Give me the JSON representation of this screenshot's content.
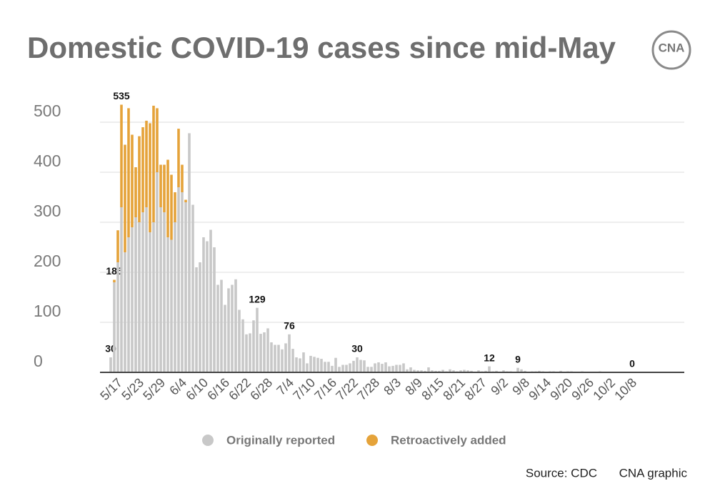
{
  "chart_data": {
    "type": "bar",
    "stacked": true,
    "title": "Domestic COVID-19 cases since mid-May",
    "logo": "CNA",
    "source": "Source: CDC",
    "credit": "CNA graphic",
    "ylim": [
      0,
      550
    ],
    "yticks": [
      0,
      100,
      200,
      300,
      400,
      500
    ],
    "grid": true,
    "categories": [
      null,
      null,
      "5/17",
      null,
      null,
      null,
      null,
      null,
      "5/23",
      null,
      null,
      null,
      null,
      null,
      "5/29",
      null,
      null,
      null,
      null,
      null,
      "6/4",
      null,
      null,
      null,
      null,
      null,
      "6/10",
      null,
      null,
      null,
      null,
      null,
      "6/16",
      null,
      null,
      null,
      null,
      null,
      "6/22",
      null,
      null,
      null,
      null,
      null,
      "6/28",
      null,
      null,
      null,
      null,
      null,
      "7/4",
      null,
      null,
      null,
      null,
      null,
      "7/10",
      null,
      null,
      null,
      null,
      null,
      "7/16",
      null,
      null,
      null,
      null,
      null,
      "7/22",
      null,
      null,
      null,
      null,
      null,
      "7/28",
      null,
      null,
      null,
      null,
      null,
      "8/3",
      null,
      null,
      null,
      null,
      null,
      "8/9",
      null,
      null,
      null,
      null,
      null,
      "8/15",
      null,
      null,
      null,
      null,
      null,
      "8/21",
      null,
      null,
      null,
      null,
      null,
      "8/27",
      null,
      null,
      null,
      null,
      null,
      "9/2",
      null,
      null,
      null,
      null,
      null,
      "9/8",
      null,
      null,
      null,
      null,
      null,
      "9/14",
      null,
      null,
      null,
      null,
      null,
      "9/20",
      null,
      null,
      null,
      null,
      null,
      "9/26",
      null,
      null,
      null,
      null,
      null,
      "10/2",
      null,
      null,
      null,
      null,
      null,
      "10/8"
    ],
    "series": [
      {
        "name": "Originally reported",
        "color": "#c8c8c8",
        "values": [
          30,
          180,
          220,
          330,
          240,
          270,
          290,
          310,
          300,
          320,
          330,
          280,
          300,
          400,
          330,
          320,
          270,
          265,
          300,
          370,
          360,
          340,
          478,
          335,
          210,
          220,
          270,
          262,
          285,
          250,
          175,
          185,
          135,
          168,
          175,
          186,
          125,
          106,
          76,
          78,
          104,
          129,
          77,
          80,
          88,
          60,
          55,
          55,
          46,
          58,
          76,
          47,
          30,
          28,
          40,
          18,
          33,
          31,
          29,
          27,
          21,
          21,
          13,
          29,
          11,
          15,
          15,
          18,
          23,
          30,
          25,
          24,
          11,
          11,
          18,
          20,
          17,
          20,
          12,
          13,
          15,
          15,
          18,
          6,
          10,
          5,
          4,
          4,
          3,
          10,
          4,
          3,
          3,
          5,
          2,
          6,
          4,
          2,
          4,
          5,
          4,
          3,
          1,
          4,
          2,
          3,
          12,
          2,
          3,
          1,
          4,
          2,
          2,
          1,
          9,
          6,
          3,
          1,
          2,
          2,
          3,
          2,
          1,
          2,
          2,
          1,
          3,
          1,
          2,
          2,
          1,
          1,
          2,
          1,
          0,
          1,
          1,
          2,
          1,
          0,
          1,
          1,
          0,
          1,
          0,
          1,
          0
        ]
      },
      {
        "name": "Retroactively added",
        "color": "#e5a33a",
        "values": [
          0,
          5,
          64,
          205,
          215,
          258,
          185,
          100,
          172,
          170,
          173,
          218,
          233,
          128,
          85,
          95,
          155,
          130,
          60,
          117,
          55,
          5,
          0,
          0,
          0,
          0,
          0,
          0,
          0,
          0,
          0,
          0,
          0,
          0,
          0,
          0,
          0,
          0,
          0,
          0,
          0,
          0,
          0,
          0,
          0,
          0,
          0,
          0,
          0,
          0,
          0,
          0,
          0,
          0,
          0,
          0,
          0,
          0,
          0,
          0,
          0,
          0,
          0,
          0,
          0,
          0,
          0,
          0,
          0,
          0,
          0,
          0,
          0,
          0,
          0,
          0,
          0,
          0,
          0,
          0,
          0,
          0,
          0,
          0,
          0,
          0,
          0,
          0,
          0,
          0,
          0,
          0,
          0,
          0,
          0,
          0,
          0,
          0,
          0,
          0,
          0,
          0,
          0,
          0,
          0,
          0,
          0,
          0,
          0,
          0,
          0,
          0,
          0,
          0,
          0,
          0,
          0,
          0,
          0,
          0,
          0,
          0,
          0,
          0,
          0,
          0,
          0,
          0,
          0,
          0,
          0,
          0,
          0,
          0,
          0,
          0,
          0,
          0,
          0,
          0,
          0,
          0,
          0,
          0,
          0,
          0,
          0
        ]
      }
    ],
    "total_labels": [
      30,
      185,
      null,
      535,
      null,
      null,
      null,
      null,
      null,
      null,
      null,
      null,
      null,
      null,
      null,
      null,
      null,
      null,
      null,
      null,
      null,
      null,
      null,
      null,
      null,
      null,
      null,
      null,
      null,
      null,
      null,
      null,
      null,
      null,
      null,
      null,
      null,
      null,
      null,
      null,
      null,
      129,
      null,
      null,
      null,
      null,
      null,
      null,
      null,
      null,
      76,
      null,
      null,
      null,
      null,
      null,
      null,
      null,
      null,
      null,
      null,
      null,
      null,
      null,
      null,
      null,
      null,
      null,
      null,
      30,
      null,
      null,
      null,
      null,
      null,
      null,
      null,
      null,
      null,
      null,
      null,
      null,
      null,
      null,
      null,
      null,
      null,
      null,
      null,
      null,
      null,
      null,
      null,
      null,
      null,
      null,
      null,
      null,
      null,
      null,
      null,
      null,
      null,
      null,
      null,
      null,
      12,
      null,
      null,
      null,
      null,
      null,
      null,
      null,
      9,
      null,
      null,
      null,
      null,
      null,
      null,
      null,
      null,
      null,
      null,
      null,
      null,
      null,
      null,
      null,
      null,
      null,
      null,
      null,
      null,
      null,
      null,
      null,
      null,
      null,
      null,
      null,
      null,
      null,
      null,
      null,
      0
    ]
  }
}
